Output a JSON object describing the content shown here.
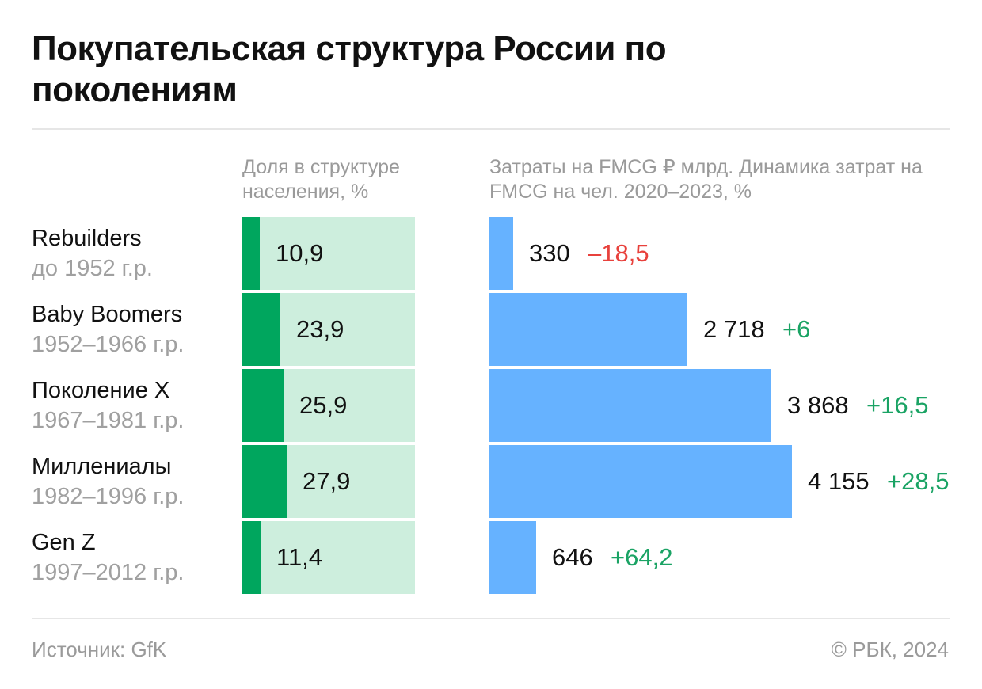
{
  "title": "Покупательская структура России по поколениям",
  "columns": {
    "population_share": "Доля в структуре населения, %",
    "spending": "Затраты на FMCG ₽ млрд. Динамика затрат на FMCG на чел. 2020–2023, %"
  },
  "footer": {
    "source": "Источник: GfK",
    "copyright": "© РБК, 2024"
  },
  "colors": {
    "share_bar": "#00a65e",
    "share_track": "#cdeedd",
    "spend_bar": "#66b2ff",
    "delta_negative": "#e8413c",
    "delta_positive": "#1aa364"
  },
  "chart_data": {
    "type": "bar",
    "categories": [
      "Rebuilders",
      "Baby Boomers",
      "Поколение X",
      "Миллениалы",
      "Gen Z"
    ],
    "category_years": [
      "до 1952 г.р.",
      "1952–1966 г.р.",
      "1967–1981 г.р.",
      "1982–1996 г.р.",
      "1997–2012 г.р."
    ],
    "series": [
      {
        "values": [
          10.9,
          23.9,
          25.9,
          27.9,
          11.4
        ],
        "labels": [
          "10,9",
          "23,9",
          "25,9",
          "27,9",
          "11,4"
        ]
      },
      {
        "values": [
          330,
          2718,
          3868,
          4155,
          646
        ],
        "labels": [
          "330",
          "2 718",
          "3 868",
          "4 155",
          "646"
        ]
      },
      {
        "values": [
          -18.5,
          6,
          16.5,
          28.5,
          64.2
        ],
        "labels": [
          "–18,5",
          "+6",
          "+16,5",
          "+28,5",
          "+64,2"
        ]
      }
    ]
  }
}
